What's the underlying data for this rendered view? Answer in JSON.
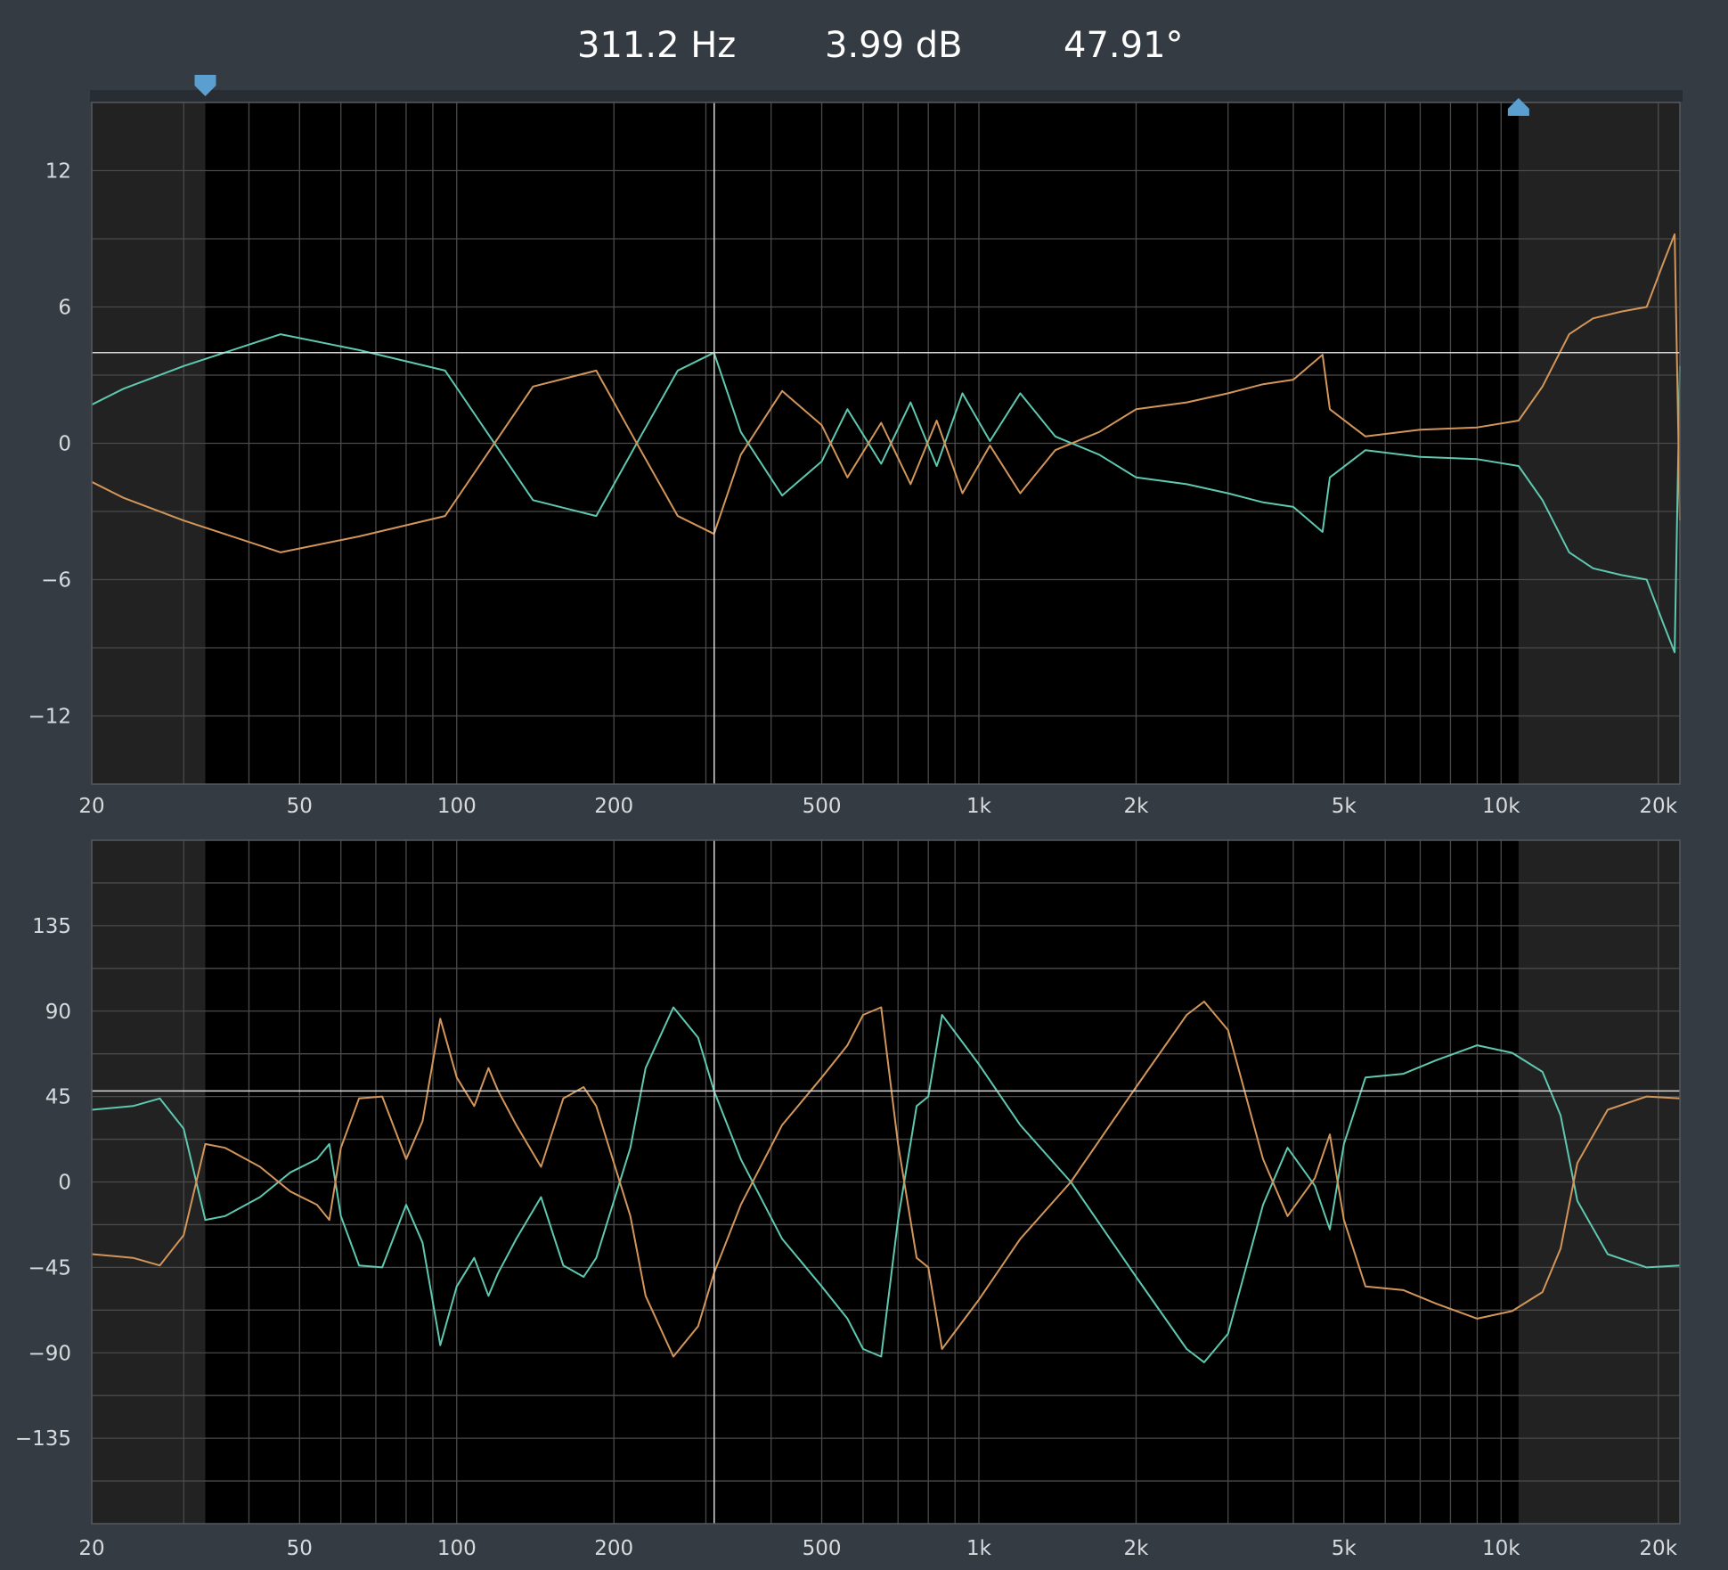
{
  "readout": {
    "frequency": "311.2 Hz",
    "magnitude": "3.99 dB",
    "phase": "47.91°"
  },
  "range_markers": {
    "low_hz": 33,
    "high_hz": 10800,
    "low_marker_icon": "down-triangle-marker-icon",
    "high_marker_icon": "up-triangle-marker-icon"
  },
  "cursor": {
    "frequency_hz": 311.2,
    "magnitude_db": 3.99,
    "phase_deg": 47.91
  },
  "colors": {
    "background": "#343b42",
    "plot_active": "#000000",
    "plot_inactive": "#222222",
    "grid": "#4a4a4a",
    "teal": "#5fc8b0",
    "orange": "#d3965a",
    "cursor": "#d8d8d8",
    "marker": "#5a9fcf"
  },
  "chart_data": [
    {
      "type": "line",
      "title": "",
      "xlabel": "",
      "ylabel": "",
      "x_scale": "log",
      "xlim": [
        20,
        22000
      ],
      "ylim": [
        -15,
        15
      ],
      "grid": true,
      "x_ticks": [
        20,
        50,
        100,
        200,
        500,
        1000,
        2000,
        5000,
        10000,
        20000
      ],
      "x_tick_labels": [
        "20",
        "50",
        "100",
        "200",
        "500",
        "1k",
        "2k",
        "5k",
        "10k",
        "20k"
      ],
      "y_ticks": [
        12,
        6,
        0,
        -6,
        -12
      ],
      "y_tick_labels": [
        "12",
        "6",
        "0",
        "−6",
        "−12"
      ],
      "series": [
        {
          "color": "#5fc8b0",
          "x": [
            20,
            23,
            30,
            46,
            65,
            95,
            140,
            185,
            225,
            265,
            311,
            350,
            420,
            500,
            560,
            650,
            740,
            830,
            930,
            1050,
            1200,
            1400,
            1700,
            2000,
            2500,
            3000,
            3500,
            4000,
            4550,
            4700,
            5500,
            7000,
            9000,
            10800,
            12000,
            13500,
            15000,
            17000,
            19000,
            20500,
            21500,
            22000
          ],
          "y": [
            1.7,
            2.4,
            3.4,
            4.8,
            4.1,
            3.2,
            -2.5,
            -3.2,
            0.3,
            3.2,
            3.99,
            0.5,
            -2.3,
            -0.8,
            1.5,
            -0.9,
            1.8,
            -1.0,
            2.2,
            0.1,
            2.2,
            0.3,
            -0.5,
            -1.5,
            -1.8,
            -2.2,
            -2.6,
            -2.8,
            -3.9,
            -1.5,
            -0.3,
            -0.6,
            -0.7,
            -1.0,
            -2.5,
            -4.8,
            -5.5,
            -5.8,
            -6.0,
            -8.0,
            -9.2,
            3.4
          ]
        },
        {
          "color": "#d3965a",
          "x": [
            20,
            23,
            30,
            46,
            65,
            95,
            140,
            185,
            225,
            265,
            311,
            350,
            420,
            500,
            560,
            650,
            740,
            830,
            930,
            1050,
            1200,
            1400,
            1700,
            2000,
            2500,
            3000,
            3500,
            4000,
            4550,
            4700,
            5500,
            7000,
            9000,
            10800,
            12000,
            13500,
            15000,
            17000,
            19000,
            20500,
            21500,
            22000
          ],
          "y": [
            -1.7,
            -2.4,
            -3.4,
            -4.8,
            -4.1,
            -3.2,
            2.5,
            3.2,
            -0.3,
            -3.2,
            -3.99,
            -0.5,
            2.3,
            0.8,
            -1.5,
            0.9,
            -1.8,
            1.0,
            -2.2,
            -0.1,
            -2.2,
            -0.3,
            0.5,
            1.5,
            1.8,
            2.2,
            2.6,
            2.8,
            3.9,
            1.5,
            0.3,
            0.6,
            0.7,
            1.0,
            2.5,
            4.8,
            5.5,
            5.8,
            6.0,
            8.0,
            9.2,
            -3.4
          ]
        }
      ]
    },
    {
      "type": "line",
      "title": "",
      "xlabel": "",
      "ylabel": "",
      "x_scale": "log",
      "xlim": [
        20,
        22000
      ],
      "ylim": [
        -180,
        180
      ],
      "grid": true,
      "x_ticks": [
        20,
        50,
        100,
        200,
        500,
        1000,
        2000,
        5000,
        10000,
        20000
      ],
      "x_tick_labels": [
        "20",
        "50",
        "100",
        "200",
        "500",
        "1k",
        "2k",
        "5k",
        "10k",
        "20k"
      ],
      "y_ticks": [
        135,
        90,
        45,
        0,
        -45,
        -90,
        -135
      ],
      "y_tick_labels": [
        "135",
        "90",
        "45",
        "0",
        "−45",
        "−90",
        "−135"
      ],
      "series": [
        {
          "color": "#5fc8b0",
          "x": [
            20,
            24,
            27,
            30,
            33,
            36,
            42,
            48,
            54,
            57,
            60,
            65,
            72,
            80,
            86,
            93,
            100,
            108,
            115,
            120,
            130,
            145,
            160,
            175,
            185,
            200,
            215,
            230,
            260,
            290,
            311,
            350,
            420,
            500,
            560,
            600,
            650,
            700,
            760,
            800,
            850,
            1000,
            1200,
            1500,
            2000,
            2500,
            2700,
            3000,
            3500,
            3900,
            4400,
            4700,
            5000,
            5500,
            6500,
            7500,
            9000,
            10500,
            12000,
            13000,
            14000,
            16000,
            19000,
            22000
          ],
          "y": [
            38,
            40,
            44,
            28,
            -20,
            -18,
            -8,
            5,
            12,
            20,
            -18,
            -44,
            -45,
            -12,
            -32,
            -86,
            -55,
            -40,
            -60,
            -48,
            -30,
            -8,
            -44,
            -50,
            -40,
            -10,
            18,
            60,
            92,
            76,
            48,
            12,
            -30,
            -55,
            -72,
            -88,
            -92,
            -20,
            40,
            45,
            88,
            62,
            30,
            0,
            -50,
            -88,
            -95,
            -80,
            -12,
            18,
            -2,
            -25,
            20,
            55,
            57,
            64,
            72,
            68,
            58,
            35,
            -10,
            -38,
            -45,
            -44
          ]
        },
        {
          "color": "#d3965a",
          "x": [
            20,
            24,
            27,
            30,
            33,
            36,
            42,
            48,
            54,
            57,
            60,
            65,
            72,
            80,
            86,
            93,
            100,
            108,
            115,
            120,
            130,
            145,
            160,
            175,
            185,
            200,
            215,
            230,
            260,
            290,
            311,
            350,
            420,
            500,
            560,
            600,
            650,
            700,
            760,
            800,
            850,
            1000,
            1200,
            1500,
            2000,
            2500,
            2700,
            3000,
            3500,
            3900,
            4400,
            4700,
            5000,
            5500,
            6500,
            7500,
            9000,
            10500,
            12000,
            13000,
            14000,
            16000,
            19000,
            22000
          ],
          "y": [
            -38,
            -40,
            -44,
            -28,
            20,
            18,
            8,
            -5,
            -12,
            -20,
            18,
            44,
            45,
            12,
            32,
            86,
            55,
            40,
            60,
            48,
            30,
            8,
            44,
            50,
            40,
            10,
            -18,
            -60,
            -92,
            -76,
            -48,
            -12,
            30,
            55,
            72,
            88,
            92,
            20,
            -40,
            -45,
            -88,
            -62,
            -30,
            0,
            50,
            88,
            95,
            80,
            12,
            -18,
            2,
            25,
            -20,
            -55,
            -57,
            -64,
            -72,
            -68,
            -58,
            -35,
            10,
            38,
            45,
            44
          ]
        }
      ]
    }
  ]
}
